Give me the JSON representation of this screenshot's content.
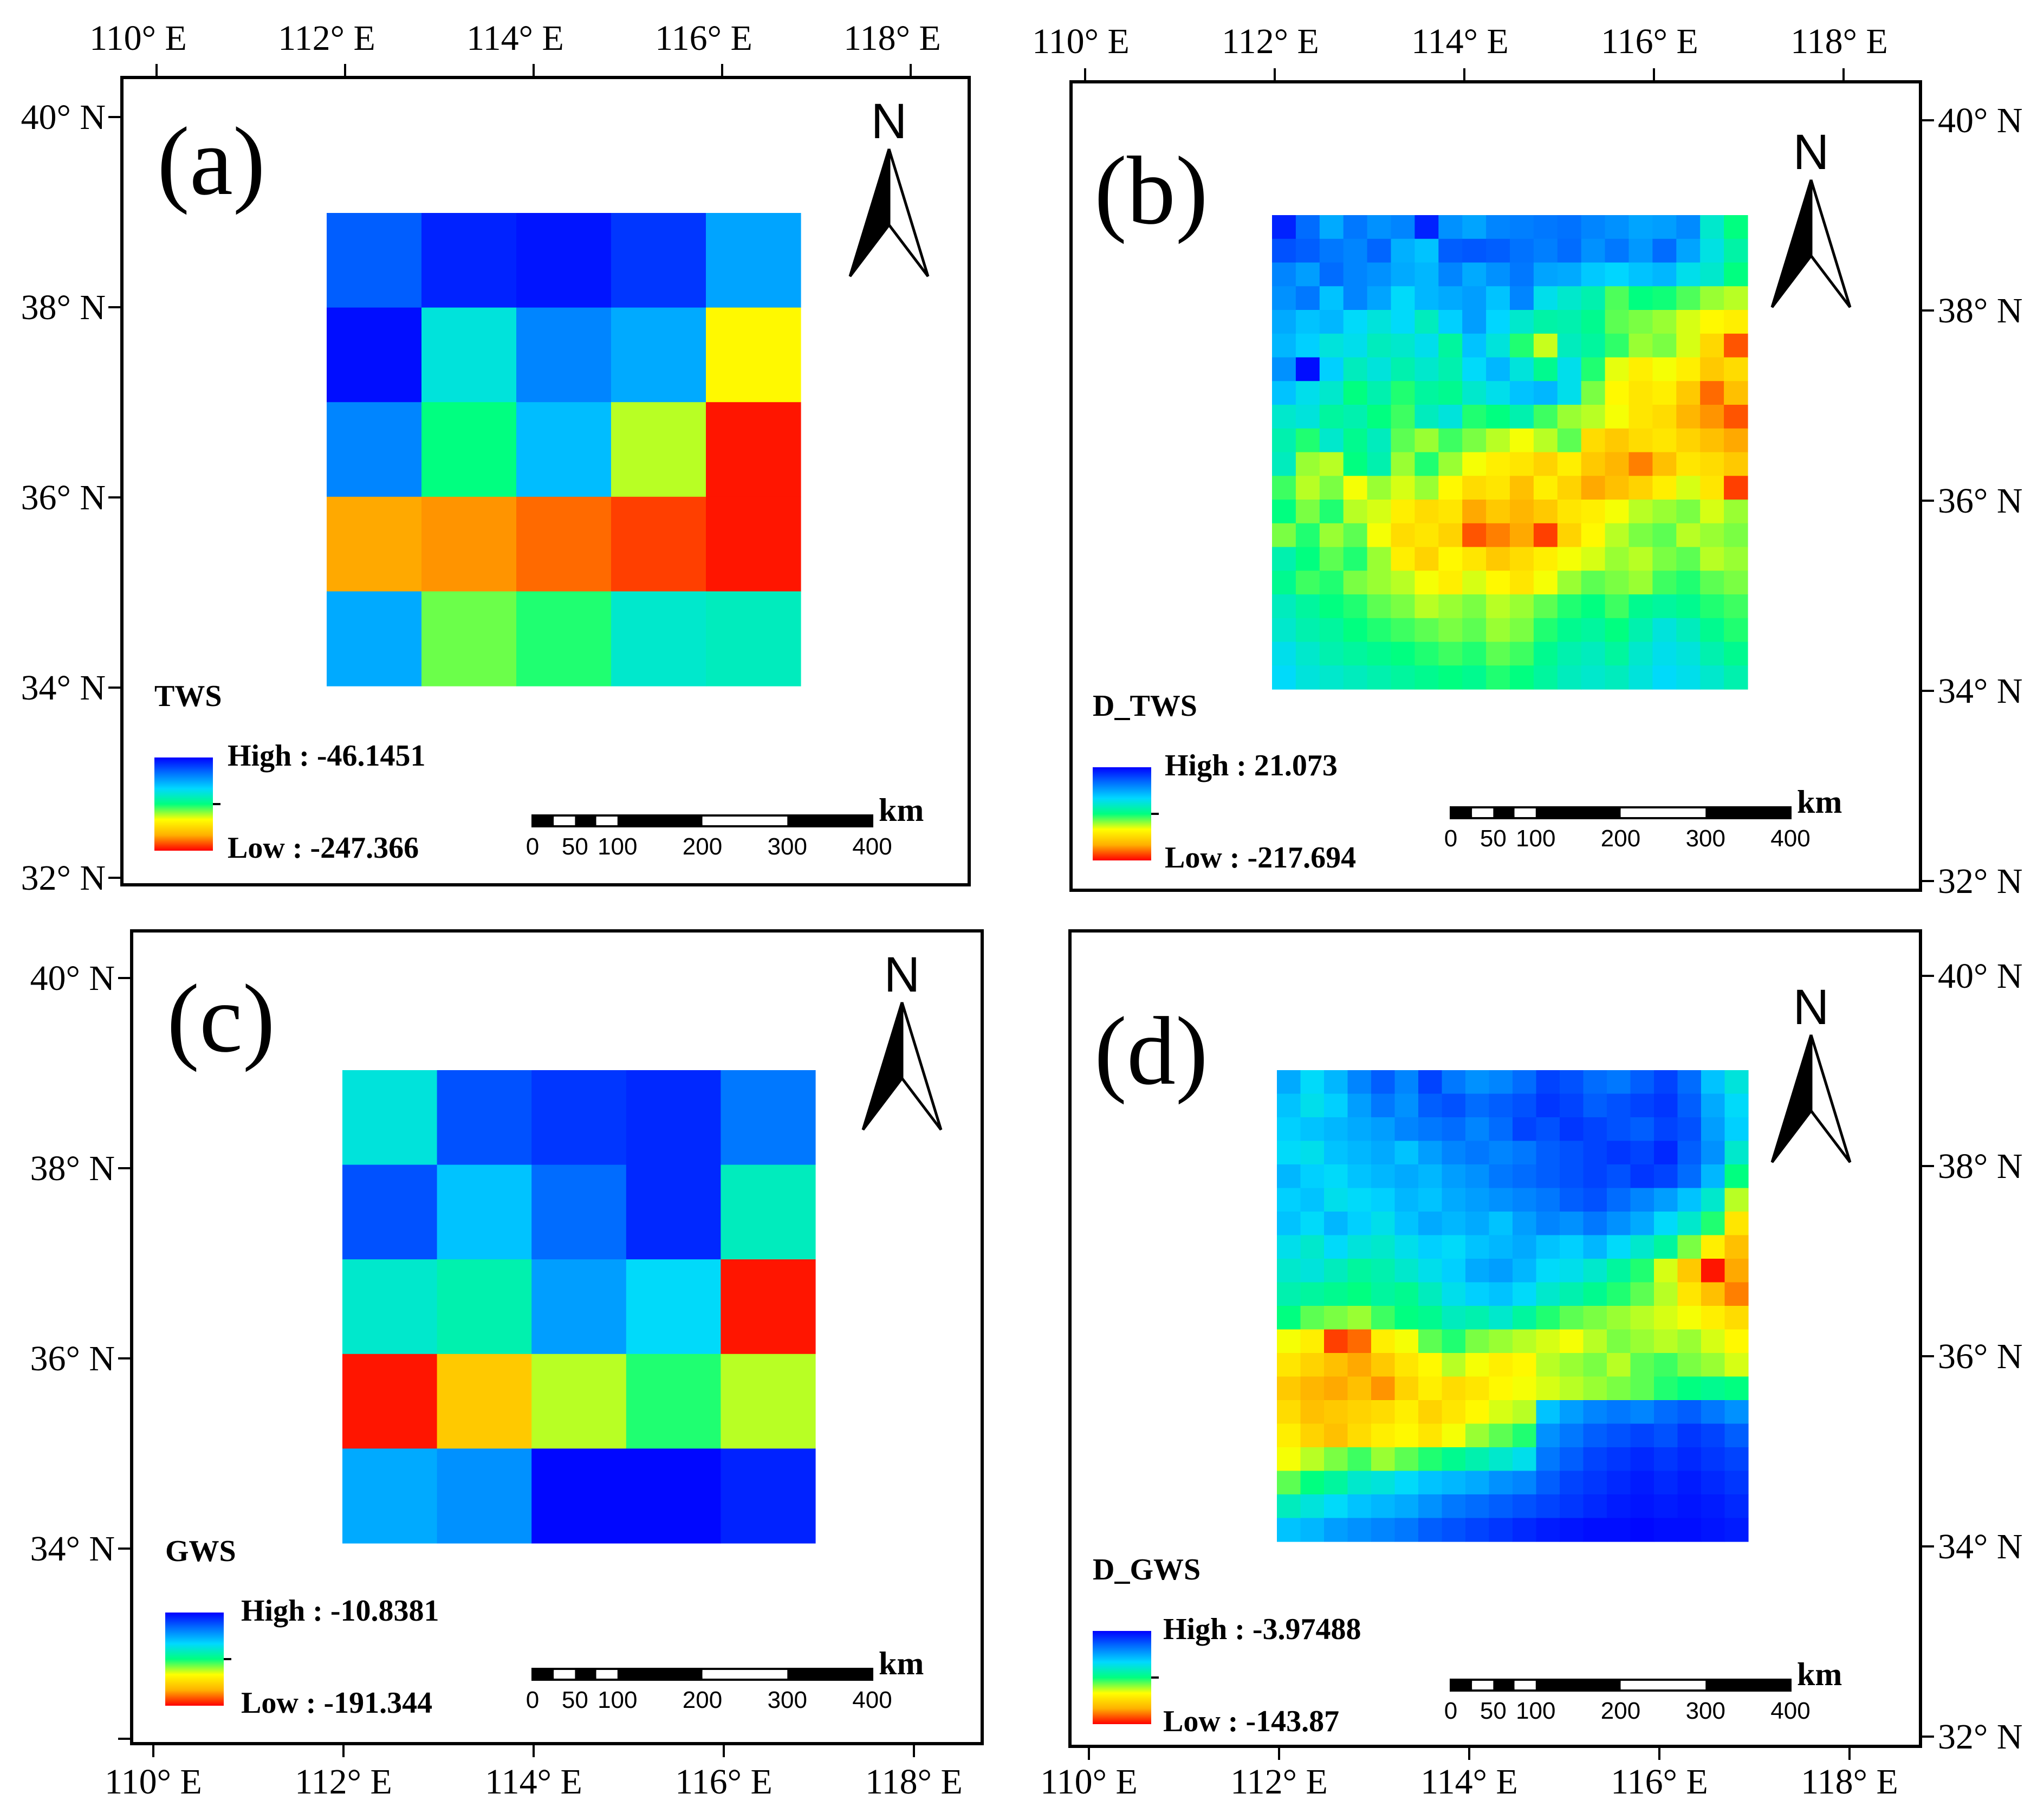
{
  "figure": {
    "x_ticks": [
      "110° E",
      "112° E",
      "114° E",
      "116° E",
      "118° E"
    ],
    "y_ticks": [
      "40° N",
      "38° N",
      "36° N",
      "34° N",
      "32° N"
    ],
    "north_label": "N",
    "scale_labels": [
      "0",
      "50",
      "100",
      "200",
      "300",
      "400"
    ],
    "scale_unit": "km",
    "colors": {
      "ramp": [
        "#0000ff",
        "#0070ff",
        "#00d8ff",
        "#00ff80",
        "#ffff00",
        "#ffb000",
        "#ff0000"
      ]
    },
    "panels": [
      {
        "label": "(a)",
        "legend_title": "TWS",
        "high_label": "High : -46.1451",
        "low_label": "Low : -247.366",
        "grid": [
          [
            0.14,
            0.05,
            0.03,
            0.08,
            0.25
          ],
          [
            0.02,
            0.38,
            0.2,
            0.26,
            0.68
          ],
          [
            0.2,
            0.5,
            0.29,
            0.62,
            0.98
          ],
          [
            0.84,
            0.86,
            0.9,
            0.94,
            0.98
          ],
          [
            0.26,
            0.57,
            0.52,
            0.4,
            0.42
          ]
        ]
      },
      {
        "label": "(b)",
        "legend_title": "D_TWS",
        "high_label": "High : 21.073",
        "low_label": "Low : -217.694",
        "grid": [
          [
            0.05,
            0.16,
            0.26,
            0.18,
            0.22,
            0.2,
            0.05,
            0.22,
            0.25,
            0.2,
            0.19,
            0.18,
            0.17,
            0.2,
            0.22,
            0.25,
            0.24,
            0.21,
            0.4,
            0.5
          ],
          [
            0.12,
            0.14,
            0.18,
            0.2,
            0.15,
            0.27,
            0.3,
            0.14,
            0.13,
            0.14,
            0.17,
            0.19,
            0.16,
            0.22,
            0.18,
            0.23,
            0.16,
            0.25,
            0.37,
            0.45
          ],
          [
            0.2,
            0.24,
            0.16,
            0.2,
            0.22,
            0.26,
            0.28,
            0.2,
            0.26,
            0.22,
            0.18,
            0.25,
            0.26,
            0.31,
            0.33,
            0.3,
            0.28,
            0.36,
            0.4,
            0.5
          ],
          [
            0.22,
            0.18,
            0.3,
            0.2,
            0.25,
            0.34,
            0.28,
            0.26,
            0.24,
            0.3,
            0.2,
            0.36,
            0.4,
            0.44,
            0.55,
            0.5,
            0.51,
            0.55,
            0.6,
            0.62
          ],
          [
            0.26,
            0.3,
            0.28,
            0.34,
            0.38,
            0.34,
            0.42,
            0.32,
            0.24,
            0.33,
            0.4,
            0.45,
            0.44,
            0.48,
            0.56,
            0.58,
            0.6,
            0.64,
            0.68,
            0.7
          ],
          [
            0.28,
            0.32,
            0.38,
            0.36,
            0.42,
            0.4,
            0.36,
            0.46,
            0.3,
            0.38,
            0.52,
            0.63,
            0.42,
            0.46,
            0.53,
            0.6,
            0.58,
            0.64,
            0.75,
            0.92
          ],
          [
            0.22,
            0.02,
            0.32,
            0.42,
            0.38,
            0.44,
            0.4,
            0.44,
            0.34,
            0.28,
            0.38,
            0.48,
            0.36,
            0.52,
            0.65,
            0.7,
            0.66,
            0.7,
            0.78,
            0.74
          ],
          [
            0.3,
            0.36,
            0.4,
            0.5,
            0.44,
            0.52,
            0.46,
            0.48,
            0.4,
            0.36,
            0.3,
            0.28,
            0.36,
            0.58,
            0.68,
            0.72,
            0.7,
            0.78,
            0.9,
            0.8
          ],
          [
            0.4,
            0.38,
            0.46,
            0.44,
            0.5,
            0.54,
            0.42,
            0.38,
            0.52,
            0.5,
            0.44,
            0.54,
            0.6,
            0.62,
            0.66,
            0.72,
            0.74,
            0.82,
            0.86,
            0.92
          ],
          [
            0.44,
            0.52,
            0.4,
            0.48,
            0.42,
            0.56,
            0.6,
            0.54,
            0.58,
            0.62,
            0.66,
            0.62,
            0.56,
            0.74,
            0.78,
            0.74,
            0.72,
            0.76,
            0.8,
            0.84
          ],
          [
            0.42,
            0.6,
            0.62,
            0.5,
            0.44,
            0.6,
            0.52,
            0.6,
            0.66,
            0.7,
            0.72,
            0.76,
            0.7,
            0.78,
            0.82,
            0.88,
            0.8,
            0.72,
            0.74,
            0.78
          ],
          [
            0.54,
            0.62,
            0.58,
            0.66,
            0.6,
            0.64,
            0.6,
            0.68,
            0.74,
            0.72,
            0.8,
            0.7,
            0.76,
            0.84,
            0.8,
            0.76,
            0.7,
            0.64,
            0.72,
            0.94
          ],
          [
            0.5,
            0.58,
            0.52,
            0.62,
            0.64,
            0.7,
            0.74,
            0.72,
            0.84,
            0.78,
            0.82,
            0.78,
            0.72,
            0.7,
            0.66,
            0.62,
            0.6,
            0.58,
            0.64,
            0.6
          ],
          [
            0.58,
            0.52,
            0.6,
            0.56,
            0.66,
            0.74,
            0.72,
            0.76,
            0.92,
            0.88,
            0.84,
            0.94,
            0.76,
            0.68,
            0.62,
            0.58,
            0.56,
            0.62,
            0.6,
            0.58
          ],
          [
            0.44,
            0.5,
            0.56,
            0.52,
            0.6,
            0.7,
            0.76,
            0.68,
            0.72,
            0.78,
            0.74,
            0.7,
            0.66,
            0.64,
            0.6,
            0.62,
            0.58,
            0.56,
            0.62,
            0.6
          ],
          [
            0.48,
            0.54,
            0.52,
            0.58,
            0.6,
            0.62,
            0.66,
            0.7,
            0.64,
            0.68,
            0.72,
            0.66,
            0.6,
            0.56,
            0.58,
            0.6,
            0.54,
            0.52,
            0.56,
            0.58
          ],
          [
            0.42,
            0.46,
            0.5,
            0.52,
            0.56,
            0.58,
            0.62,
            0.6,
            0.58,
            0.62,
            0.6,
            0.56,
            0.52,
            0.5,
            0.54,
            0.48,
            0.46,
            0.48,
            0.52,
            0.54
          ],
          [
            0.4,
            0.44,
            0.46,
            0.5,
            0.52,
            0.54,
            0.56,
            0.58,
            0.56,
            0.6,
            0.58,
            0.52,
            0.48,
            0.46,
            0.5,
            0.44,
            0.38,
            0.42,
            0.48,
            0.52
          ],
          [
            0.36,
            0.4,
            0.44,
            0.46,
            0.48,
            0.5,
            0.52,
            0.54,
            0.52,
            0.56,
            0.54,
            0.48,
            0.44,
            0.42,
            0.46,
            0.4,
            0.36,
            0.38,
            0.44,
            0.48
          ],
          [
            0.34,
            0.38,
            0.4,
            0.42,
            0.44,
            0.46,
            0.48,
            0.5,
            0.48,
            0.52,
            0.5,
            0.46,
            0.42,
            0.4,
            0.42,
            0.38,
            0.34,
            0.36,
            0.4,
            0.44
          ]
        ]
      },
      {
        "label": "(c)",
        "legend_title": "GWS",
        "high_label": "High : -10.8381",
        "low_label": "Low : -191.344",
        "grid": [
          [
            0.38,
            0.12,
            0.08,
            0.06,
            0.18
          ],
          [
            0.12,
            0.3,
            0.16,
            0.06,
            0.42
          ],
          [
            0.4,
            0.44,
            0.24,
            0.34,
            0.98
          ],
          [
            0.98,
            0.78,
            0.62,
            0.52,
            0.62
          ],
          [
            0.26,
            0.22,
            0.01,
            0.01,
            0.05
          ]
        ]
      },
      {
        "label": "(d)",
        "legend_title": "D_GWS",
        "high_label": "High : -3.97488",
        "low_label": "Low : -143.87",
        "grid": [
          [
            0.26,
            0.34,
            0.28,
            0.2,
            0.14,
            0.2,
            0.1,
            0.18,
            0.22,
            0.2,
            0.16,
            0.1,
            0.12,
            0.16,
            0.18,
            0.14,
            0.1,
            0.16,
            0.3,
            0.38
          ],
          [
            0.3,
            0.36,
            0.32,
            0.24,
            0.18,
            0.22,
            0.14,
            0.12,
            0.16,
            0.14,
            0.12,
            0.08,
            0.1,
            0.14,
            0.12,
            0.1,
            0.08,
            0.14,
            0.26,
            0.34
          ],
          [
            0.32,
            0.3,
            0.28,
            0.26,
            0.24,
            0.2,
            0.18,
            0.16,
            0.2,
            0.16,
            0.1,
            0.12,
            0.08,
            0.1,
            0.12,
            0.14,
            0.1,
            0.12,
            0.24,
            0.32
          ],
          [
            0.34,
            0.36,
            0.3,
            0.28,
            0.26,
            0.3,
            0.24,
            0.2,
            0.18,
            0.2,
            0.18,
            0.14,
            0.12,
            0.1,
            0.08,
            0.1,
            0.06,
            0.14,
            0.22,
            0.4
          ],
          [
            0.28,
            0.32,
            0.34,
            0.3,
            0.28,
            0.26,
            0.28,
            0.24,
            0.22,
            0.18,
            0.16,
            0.14,
            0.12,
            0.1,
            0.12,
            0.08,
            0.1,
            0.16,
            0.28,
            0.5
          ],
          [
            0.32,
            0.3,
            0.36,
            0.34,
            0.32,
            0.28,
            0.3,
            0.26,
            0.24,
            0.22,
            0.2,
            0.18,
            0.14,
            0.12,
            0.16,
            0.2,
            0.24,
            0.3,
            0.4,
            0.62
          ],
          [
            0.3,
            0.34,
            0.28,
            0.32,
            0.36,
            0.3,
            0.26,
            0.28,
            0.26,
            0.3,
            0.24,
            0.2,
            0.22,
            0.18,
            0.22,
            0.26,
            0.34,
            0.4,
            0.52,
            0.72
          ],
          [
            0.36,
            0.4,
            0.34,
            0.38,
            0.4,
            0.36,
            0.32,
            0.34,
            0.3,
            0.28,
            0.26,
            0.3,
            0.32,
            0.28,
            0.34,
            0.4,
            0.46,
            0.58,
            0.7,
            0.8
          ],
          [
            0.4,
            0.38,
            0.42,
            0.46,
            0.44,
            0.4,
            0.36,
            0.32,
            0.26,
            0.24,
            0.28,
            0.34,
            0.36,
            0.4,
            0.46,
            0.52,
            0.64,
            0.78,
            0.98,
            0.84
          ],
          [
            0.44,
            0.46,
            0.48,
            0.5,
            0.46,
            0.48,
            0.42,
            0.36,
            0.32,
            0.3,
            0.34,
            0.4,
            0.44,
            0.48,
            0.52,
            0.56,
            0.62,
            0.72,
            0.8,
            0.88
          ],
          [
            0.5,
            0.56,
            0.58,
            0.6,
            0.54,
            0.5,
            0.48,
            0.42,
            0.44,
            0.4,
            0.46,
            0.52,
            0.56,
            0.58,
            0.6,
            0.62,
            0.64,
            0.66,
            0.7,
            0.74
          ],
          [
            0.66,
            0.7,
            0.94,
            0.9,
            0.7,
            0.66,
            0.56,
            0.52,
            0.58,
            0.6,
            0.62,
            0.64,
            0.66,
            0.62,
            0.58,
            0.6,
            0.62,
            0.6,
            0.64,
            0.68
          ],
          [
            0.72,
            0.76,
            0.8,
            0.84,
            0.78,
            0.72,
            0.68,
            0.62,
            0.66,
            0.7,
            0.68,
            0.62,
            0.6,
            0.58,
            0.62,
            0.56,
            0.54,
            0.58,
            0.6,
            0.64
          ],
          [
            0.78,
            0.82,
            0.84,
            0.8,
            0.86,
            0.76,
            0.7,
            0.74,
            0.72,
            0.68,
            0.66,
            0.64,
            0.62,
            0.6,
            0.58,
            0.56,
            0.52,
            0.5,
            0.48,
            0.5
          ],
          [
            0.74,
            0.8,
            0.78,
            0.76,
            0.74,
            0.7,
            0.76,
            0.72,
            0.68,
            0.64,
            0.62,
            0.3,
            0.24,
            0.2,
            0.18,
            0.2,
            0.16,
            0.14,
            0.18,
            0.22
          ],
          [
            0.7,
            0.76,
            0.8,
            0.74,
            0.7,
            0.68,
            0.72,
            0.66,
            0.6,
            0.56,
            0.52,
            0.22,
            0.18,
            0.14,
            0.12,
            0.1,
            0.12,
            0.08,
            0.1,
            0.14
          ],
          [
            0.66,
            0.62,
            0.58,
            0.54,
            0.6,
            0.56,
            0.52,
            0.48,
            0.44,
            0.4,
            0.36,
            0.18,
            0.14,
            0.1,
            0.08,
            0.06,
            0.08,
            0.06,
            0.08,
            0.1
          ],
          [
            0.56,
            0.5,
            0.46,
            0.4,
            0.38,
            0.34,
            0.3,
            0.28,
            0.26,
            0.22,
            0.2,
            0.14,
            0.1,
            0.08,
            0.06,
            0.04,
            0.06,
            0.04,
            0.06,
            0.08
          ],
          [
            0.42,
            0.38,
            0.34,
            0.3,
            0.28,
            0.26,
            0.22,
            0.18,
            0.16,
            0.14,
            0.12,
            0.1,
            0.08,
            0.06,
            0.04,
            0.03,
            0.04,
            0.03,
            0.04,
            0.06
          ],
          [
            0.3,
            0.28,
            0.24,
            0.22,
            0.2,
            0.18,
            0.14,
            0.12,
            0.1,
            0.08,
            0.06,
            0.04,
            0.03,
            0.02,
            0.02,
            0.01,
            0.02,
            0.02,
            0.03,
            0.04
          ]
        ]
      }
    ]
  }
}
